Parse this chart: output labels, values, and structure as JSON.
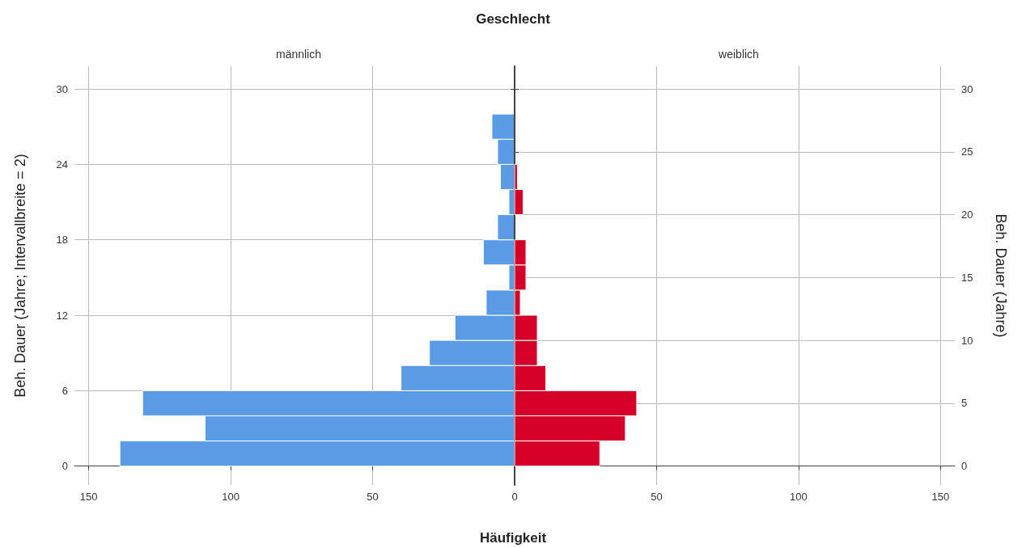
{
  "chart_data": [
    {
      "type": "histogram",
      "title": "Geschlecht",
      "subtitle": "männlich",
      "xlabel": "Häufigkeit",
      "ylabel": "Beh. Dauer (Jahre; Intervallbreite = 2)",
      "orientation": "horizontal",
      "color": "#5b9be6",
      "bins": [
        0,
        2,
        4,
        6,
        8,
        10,
        12,
        14,
        16,
        18,
        20,
        22,
        24,
        26,
        28
      ],
      "values": [
        139,
        109,
        131,
        40,
        30,
        21,
        10,
        2,
        11,
        6,
        2,
        5,
        6,
        8
      ],
      "xlim": [
        155,
        0
      ],
      "xticks": [
        {
          "value": 0,
          "label": null
        },
        50,
        100,
        150
      ],
      "ylim": [
        -1.5,
        31.8
      ],
      "yticks": [
        0,
        6,
        12,
        18,
        24,
        30
      ],
      "grid": true
    },
    {
      "type": "histogram",
      "subtitle": "weiblich",
      "ylabel": "Beh. Dauer (Jahre)",
      "orientation": "horizontal",
      "color": "#d4002a",
      "bins": [
        0,
        2,
        4,
        6,
        8,
        10,
        12,
        14,
        16,
        18,
        20,
        22,
        24,
        26,
        28
      ],
      "values": [
        30,
        39,
        43,
        11,
        8,
        8,
        2,
        4,
        4,
        0,
        3,
        1,
        0,
        0
      ],
      "xlim": [
        0,
        155
      ],
      "xticks": [
        0,
        50,
        100,
        150
      ],
      "ylim": [
        -1.5,
        31.8
      ],
      "yticks": [
        0,
        5,
        10,
        15,
        20,
        25,
        30
      ],
      "grid": true
    }
  ]
}
